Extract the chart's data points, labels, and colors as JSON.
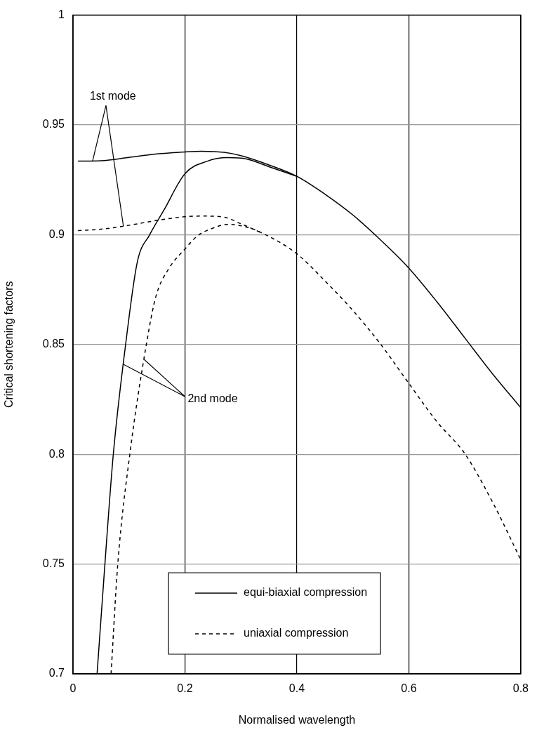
{
  "chart_data": {
    "type": "line",
    "xlabel": "Normalised wavelength",
    "ylabel": "Critical shortening factors",
    "xlim": [
      0,
      0.8
    ],
    "xticks": [
      0,
      0.2,
      0.4,
      0.6,
      0.8
    ],
    "ylim": [
      0.7,
      1
    ],
    "yticks": [
      0.7,
      0.75,
      0.8,
      0.85,
      0.9,
      0.95,
      1
    ],
    "grid": true,
    "legend": "bottom",
    "series": [
      {
        "name": "equi-biaxial compression",
        "color": "#000000",
        "line_style": "solid",
        "x": [
          0.009,
          0.05,
          0.1,
          0.15,
          0.2,
          0.23,
          0.27,
          0.3,
          0.35,
          0.4,
          0.45,
          0.5,
          0.55,
          0.6,
          0.65,
          0.7,
          0.75,
          0.8
        ],
        "values": [
          0.9335,
          0.9337,
          0.9352,
          0.9368,
          0.9377,
          0.938,
          0.9375,
          0.936,
          0.9318,
          0.9266,
          0.9185,
          0.909,
          0.8975,
          0.8848,
          0.8695,
          0.853,
          0.8365,
          0.8212
        ]
      },
      {
        "color": "#000000",
        "line_style": "solid",
        "x": [
          0.043,
          0.057,
          0.072,
          0.094,
          0.115,
          0.137,
          0.162,
          0.2,
          0.24,
          0.276,
          0.31,
          0.35,
          0.4
        ],
        "values": [
          0.7,
          0.75,
          0.8,
          0.85,
          0.8877,
          0.9,
          0.911,
          0.9278,
          0.9335,
          0.9351,
          0.9345,
          0.931,
          0.9266
        ]
      },
      {
        "name": "uniaxial compression",
        "color": "#000000",
        "line_style": "dashed",
        "x": [
          0.009,
          0.05,
          0.088,
          0.15,
          0.2,
          0.23,
          0.27,
          0.3,
          0.34
        ],
        "values": [
          0.9019,
          0.9025,
          0.9038,
          0.9065,
          0.9082,
          0.9085,
          0.908,
          0.905,
          0.9005
        ]
      },
      {
        "color": "#000000",
        "line_style": "dashed",
        "x": [
          0.068,
          0.08,
          0.1015,
          0.131,
          0.148,
          0.171,
          0.2,
          0.222,
          0.25,
          0.276,
          0.31,
          0.34,
          0.4,
          0.45,
          0.5,
          0.55,
          0.6,
          0.65,
          0.7,
          0.75,
          0.8
        ],
        "values": [
          0.7,
          0.75,
          0.8,
          0.85,
          0.8718,
          0.8845,
          0.8935,
          0.8994,
          0.903,
          0.9047,
          0.9035,
          0.9005,
          0.8913,
          0.879,
          0.8655,
          0.85,
          0.8323,
          0.8149,
          0.8003,
          0.778,
          0.752
        ]
      }
    ],
    "annotations": [
      {
        "text": "1st mode",
        "x": 0.035,
        "y": 0.9336
      },
      {
        "text": "2nd mode",
        "x": 0.09,
        "y": 0.841
      }
    ]
  }
}
